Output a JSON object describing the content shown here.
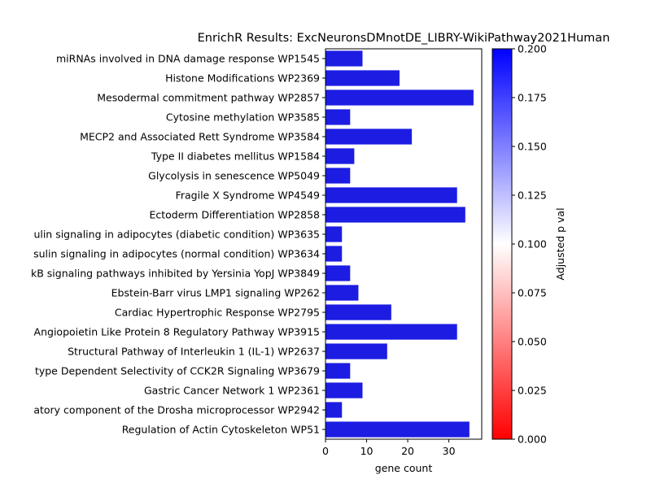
{
  "chart_data": {
    "type": "bar",
    "orientation": "horizontal",
    "title": "EnrichR Results: ExcNeuronsDMnotDE_LIBRY-WikiPathway2021Human",
    "xlabel": "gene count",
    "ylabel": "",
    "xlim": [
      0,
      38
    ],
    "xticks": [
      0,
      10,
      20,
      30
    ],
    "grid": false,
    "categories": [
      "miRNAs involved in DNA damage response WP1545",
      "Histone Modifications WP2369",
      "Mesodermal commitment pathway WP2857",
      "Cytosine methylation WP3585",
      "MECP2 and Associated Rett Syndrome WP3584",
      "Type II diabetes mellitus WP1584",
      "Glycolysis in senescence WP5049",
      "Fragile X Syndrome  WP4549",
      "Ectoderm Differentiation WP2858",
      "ulin signaling in adipocytes (diabetic condition) WP3635",
      "sulin signaling in adipocytes (normal condition) WP3634",
      "kB signaling pathways inhibited by Yersinia YopJ WP3849",
      "Ebstein-Barr virus LMP1 signaling WP262",
      "Cardiac Hypertrophic Response WP2795",
      "Angiopoietin Like Protein 8 Regulatory Pathway WP3915",
      "Structural Pathway of Interleukin 1 (IL-1) WP2637",
      "type Dependent Selectivity of CCK2R Signaling WP3679",
      "Gastric Cancer Network 1 WP2361",
      "atory component of the Drosha microprocessor WP2942",
      "Regulation of Actin Cytoskeleton WP51"
    ],
    "values": [
      9,
      18,
      36,
      6,
      21,
      7,
      6,
      32,
      34,
      4,
      4,
      6,
      8,
      16,
      32,
      15,
      6,
      9,
      4,
      35
    ],
    "bar_color": "#1c1ce3",
    "colorbar": {
      "label": "Adjusted p val",
      "range": [
        0,
        0.2
      ],
      "ticks": [
        "0.000",
        "0.025",
        "0.050",
        "0.075",
        "0.100",
        "0.125",
        "0.150",
        "0.175",
        "0.200"
      ],
      "colors": [
        "#ff0000",
        "#ffffff",
        "#0000ff"
      ]
    }
  }
}
